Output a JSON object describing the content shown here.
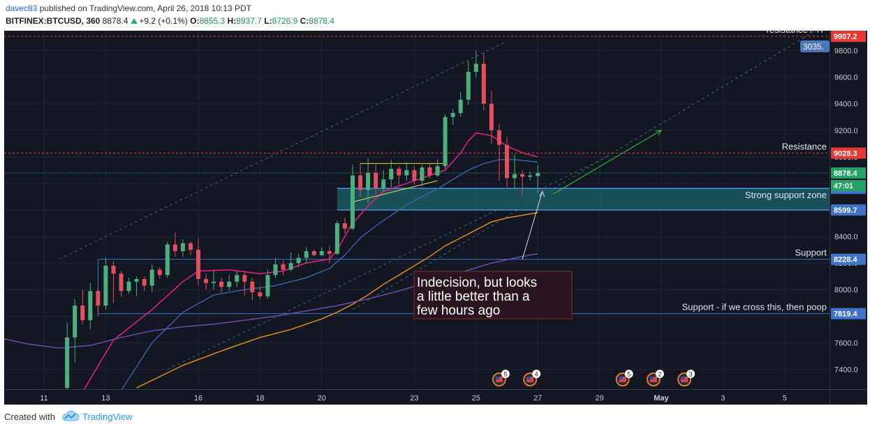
{
  "header": {
    "user": "davec83",
    "published": "published on TradingView.com, April 26, 2018 10:13 PDT",
    "symbol": "BITFINEX:BTCUSD, 360",
    "last": "8878.4",
    "change": "+9.2 (+0.1%)",
    "o_label": "O:",
    "o_value": "8855.3",
    "h_label": "H:",
    "h_value": "8937.7",
    "l_label": "L:",
    "l_value": "8726.9",
    "c_label": "C:",
    "c_value": "8878.4"
  },
  "footer": {
    "created_with": "Created with",
    "brand": "TradingView"
  },
  "colors": {
    "background": "#131722",
    "grid": "#1f2433",
    "up": "#4caf7d",
    "down": "#e0505e",
    "ma_fast": "#e91e8c",
    "ma_mid": "#3d5ea6",
    "ma_slow": "#e08a1e",
    "ma_long": "#6a4fa8",
    "resistance": "#e53935",
    "support": "#3f72c8"
  },
  "chart_data": {
    "type": "candlestick",
    "ylim": [
      7250,
      9950
    ],
    "y_ticks": [
      7400,
      7600,
      7800,
      8000,
      8200,
      8400,
      8600,
      8800,
      9000,
      9200,
      9400,
      9600,
      9800
    ],
    "y_tick_labels": [
      "7400.0",
      "7600.0",
      "7800.0",
      "8000.0",
      "8200.0",
      "8400.0",
      "8600.0",
      "8800.0",
      "9000.0",
      "9200.0",
      "9400.0",
      "9600.0",
      "9800.0"
    ],
    "x_ticks": [
      {
        "label": "11",
        "t": 0
      },
      {
        "label": "13",
        "t": 8
      },
      {
        "label": "16",
        "t": 20
      },
      {
        "label": "18",
        "t": 28
      },
      {
        "label": "20",
        "t": 36
      },
      {
        "label": "23",
        "t": 48
      },
      {
        "label": "25",
        "t": 56
      },
      {
        "label": "27",
        "t": 64
      },
      {
        "label": "29",
        "t": 72
      },
      {
        "label": "May",
        "t": 80
      },
      {
        "label": "3",
        "t": 88
      },
      {
        "label": "5",
        "t": 96
      }
    ],
    "candles": [
      [
        3,
        7260,
        7640,
        7200,
        7750
      ],
      [
        4,
        7640,
        7880,
        7450,
        7930
      ],
      [
        5,
        7880,
        7770,
        7740,
        8000
      ],
      [
        6,
        7770,
        7990,
        7700,
        8050
      ],
      [
        7,
        7990,
        7880,
        7800,
        8020
      ],
      [
        8,
        7880,
        8180,
        7850,
        8240
      ],
      [
        9,
        8180,
        8120,
        7900,
        8210
      ],
      [
        10,
        8120,
        7990,
        7950,
        8140
      ],
      [
        11,
        7990,
        8060,
        7970,
        8090
      ],
      [
        12,
        8060,
        8080,
        7950,
        8100
      ],
      [
        13,
        8080,
        8030,
        7990,
        8100
      ],
      [
        14,
        8030,
        8150,
        7980,
        8190
      ],
      [
        15,
        8150,
        8110,
        8080,
        8170
      ],
      [
        16,
        8110,
        8340,
        8090,
        8360
      ],
      [
        17,
        8340,
        8290,
        8250,
        8430
      ],
      [
        18,
        8290,
        8350,
        8250,
        8380
      ],
      [
        19,
        8350,
        8300,
        8260,
        8360
      ],
      [
        20,
        8300,
        8080,
        8030,
        8390
      ],
      [
        21,
        8080,
        8050,
        8000,
        8120
      ],
      [
        22,
        8050,
        8060,
        8000,
        8140
      ],
      [
        23,
        8060,
        8020,
        7980,
        8090
      ],
      [
        24,
        8020,
        8060,
        7990,
        8110
      ],
      [
        25,
        8060,
        8110,
        8020,
        8140
      ],
      [
        26,
        8110,
        8060,
        7960,
        8140
      ],
      [
        27,
        8060,
        7980,
        7920,
        8090
      ],
      [
        28,
        7980,
        7950,
        7930,
        8020
      ],
      [
        29,
        7950,
        8110,
        7930,
        8150
      ],
      [
        30,
        8110,
        8190,
        8090,
        8240
      ],
      [
        31,
        8190,
        8150,
        8110,
        8220
      ],
      [
        32,
        8150,
        8200,
        8140,
        8280
      ],
      [
        33,
        8200,
        8240,
        8170,
        8270
      ],
      [
        34,
        8240,
        8290,
        8200,
        8320
      ],
      [
        35,
        8290,
        8260,
        8250,
        8300
      ],
      [
        36,
        8260,
        8290,
        8250,
        8320
      ],
      [
        37,
        8290,
        8270,
        8200,
        8330
      ],
      [
        38,
        8270,
        8500,
        8260,
        8520
      ],
      [
        39,
        8500,
        8460,
        8420,
        8540
      ],
      [
        40,
        8460,
        8860,
        8450,
        8940
      ],
      [
        41,
        8860,
        8750,
        8700,
        8950
      ],
      [
        42,
        8750,
        8880,
        8650,
        8990
      ],
      [
        43,
        8880,
        8760,
        8720,
        8950
      ],
      [
        44,
        8760,
        8830,
        8740,
        8900
      ],
      [
        45,
        8830,
        8910,
        8770,
        8980
      ],
      [
        46,
        8910,
        8860,
        8790,
        8930
      ],
      [
        47,
        8860,
        8900,
        8820,
        8960
      ],
      [
        48,
        8900,
        8820,
        8790,
        8930
      ],
      [
        49,
        8820,
        8920,
        8780,
        8940
      ],
      [
        50,
        8920,
        8860,
        8840,
        8950
      ],
      [
        51,
        8860,
        8930,
        8850,
        8980
      ],
      [
        52,
        8930,
        9300,
        8910,
        9320
      ],
      [
        53,
        9300,
        9330,
        9240,
        9360
      ],
      [
        54,
        9330,
        9430,
        9300,
        9490
      ],
      [
        55,
        9430,
        9640,
        9390,
        9720
      ],
      [
        56,
        9640,
        9700,
        9600,
        9800
      ],
      [
        57,
        9700,
        9400,
        9350,
        9780
      ],
      [
        58,
        9400,
        9200,
        9100,
        9500
      ],
      [
        59,
        9200,
        9090,
        8820,
        9250
      ],
      [
        60,
        9090,
        8840,
        8770,
        9150
      ],
      [
        61,
        8840,
        8870,
        8760,
        9020
      ],
      [
        62,
        8870,
        8850,
        8710,
        8900
      ],
      [
        63,
        8850,
        8860,
        8820,
        8890
      ],
      [
        64,
        8855,
        8878,
        8727,
        8938
      ]
    ],
    "moving_averages": [
      {
        "color_key": "ma_fast",
        "points": [
          [
            5,
            7230
          ],
          [
            9,
            7620
          ],
          [
            14,
            7850
          ],
          [
            18,
            8060
          ],
          [
            20,
            8140
          ],
          [
            24,
            8150
          ],
          [
            28,
            8120
          ],
          [
            31,
            8140
          ],
          [
            34,
            8200
          ],
          [
            37,
            8230
          ],
          [
            38,
            8300
          ],
          [
            40,
            8500
          ],
          [
            42,
            8630
          ],
          [
            44,
            8740
          ],
          [
            46,
            8780
          ],
          [
            48,
            8820
          ],
          [
            50,
            8860
          ],
          [
            52,
            8900
          ],
          [
            54,
            9030
          ],
          [
            55,
            9120
          ],
          [
            56,
            9180
          ],
          [
            58,
            9160
          ],
          [
            60,
            9080
          ],
          [
            62,
            9030
          ],
          [
            64,
            9000
          ]
        ]
      },
      {
        "color_key": "ma_mid",
        "points": [
          [
            10,
            7240
          ],
          [
            14,
            7600
          ],
          [
            18,
            7830
          ],
          [
            22,
            7960
          ],
          [
            26,
            8000
          ],
          [
            30,
            8030
          ],
          [
            34,
            8090
          ],
          [
            37,
            8160
          ],
          [
            39,
            8260
          ],
          [
            41,
            8390
          ],
          [
            43,
            8480
          ],
          [
            45,
            8560
          ],
          [
            47,
            8640
          ],
          [
            49,
            8700
          ],
          [
            51,
            8760
          ],
          [
            53,
            8830
          ],
          [
            55,
            8900
          ],
          [
            57,
            8950
          ],
          [
            59,
            8980
          ],
          [
            61,
            8980
          ],
          [
            64,
            8960
          ]
        ]
      },
      {
        "color_key": "ma_slow",
        "points": [
          [
            12,
            7260
          ],
          [
            18,
            7430
          ],
          [
            24,
            7560
          ],
          [
            28,
            7640
          ],
          [
            32,
            7700
          ],
          [
            36,
            7780
          ],
          [
            38,
            7830
          ],
          [
            40,
            7890
          ],
          [
            42,
            7960
          ],
          [
            44,
            8040
          ],
          [
            46,
            8110
          ],
          [
            48,
            8180
          ],
          [
            50,
            8250
          ],
          [
            52,
            8330
          ],
          [
            54,
            8390
          ],
          [
            56,
            8450
          ],
          [
            58,
            8510
          ],
          [
            60,
            8540
          ],
          [
            62,
            8560
          ],
          [
            64,
            8580
          ]
        ]
      },
      {
        "color_key": "ma_long",
        "points": [
          [
            -6,
            7640
          ],
          [
            -2,
            7590
          ],
          [
            2,
            7560
          ],
          [
            6,
            7580
          ],
          [
            10,
            7640
          ],
          [
            14,
            7690
          ],
          [
            18,
            7720
          ],
          [
            22,
            7740
          ],
          [
            26,
            7770
          ],
          [
            30,
            7800
          ],
          [
            34,
            7840
          ],
          [
            38,
            7880
          ],
          [
            42,
            7930
          ],
          [
            46,
            7990
          ],
          [
            50,
            8060
          ],
          [
            54,
            8130
          ],
          [
            58,
            8200
          ],
          [
            62,
            8250
          ],
          [
            64,
            8270
          ]
        ]
      }
    ],
    "horizontal_lines": [
      {
        "value": 9907.2,
        "label": "9907.2",
        "color_key": "resistance",
        "dashed": true
      },
      {
        "value": 9028.3,
        "label": "9028.3",
        "color_key": "resistance",
        "dashed": true
      },
      {
        "value": 8228.4,
        "label": "8228.4",
        "color_key": "support",
        "dashed": false
      },
      {
        "value": 7819.4,
        "label": "7819.4",
        "color_key": "support",
        "dashed": false
      }
    ],
    "support_zone": {
      "top": 8762.7,
      "bottom": 8599.7,
      "t_start": 38,
      "top_label": "8762.7",
      "bottom_label": "8599.7",
      "text": "Strong support zone"
    },
    "current_price": {
      "value": 8878.4,
      "label": "8878.4",
      "countdown": "47:01"
    },
    "right_labels": [
      {
        "text": "resistance / TP",
        "value": 9907.2
      },
      {
        "text": "Resistance",
        "value": 9028.3
      },
      {
        "text": "Support",
        "value": 8228.4
      },
      {
        "text": "Support - if we cross this, then poop",
        "value": 7819.4
      }
    ],
    "top_right_badge": "3035.",
    "annotation": {
      "lines": [
        "Indecision, but looks",
        "a little better than a",
        "few hours ago"
      ]
    },
    "event_badges": [
      {
        "t": 59,
        "count": "5"
      },
      {
        "t": 63,
        "count": "4"
      },
      {
        "t": 75,
        "count": "5"
      },
      {
        "t": 79,
        "count": "2"
      },
      {
        "t": 83,
        "count": "3"
      }
    ]
  }
}
